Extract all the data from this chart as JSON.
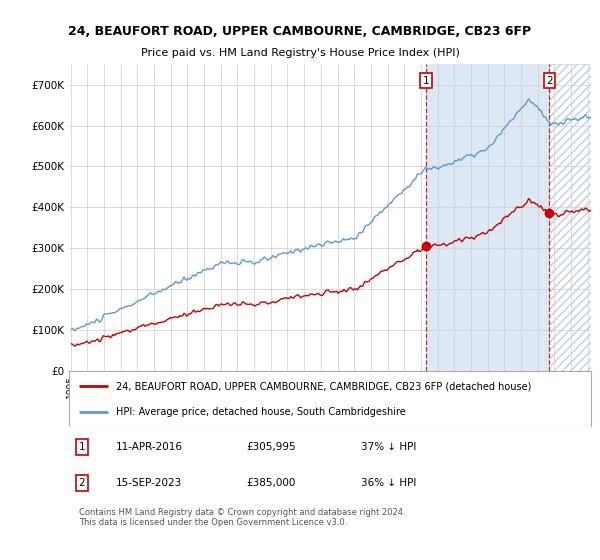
{
  "title": "24, BEAUFORT ROAD, UPPER CAMBOURNE, CAMBRIDGE, CB23 6FP",
  "subtitle": "Price paid vs. HM Land Registry's House Price Index (HPI)",
  "hpi_label": "HPI: Average price, detached house, South Cambridgeshire",
  "property_label": "24, BEAUFORT ROAD, UPPER CAMBOURNE, CAMBRIDGE, CB23 6FP (detached house)",
  "hpi_color": "#5b9bd5",
  "property_color": "#cc0000",
  "vline_color": "#cc0000",
  "shade_color": "#dce9f5",
  "hatch_color": "#c0d0e0",
  "annotation1": {
    "label": "1",
    "date": "11-APR-2016",
    "price": "£305,995",
    "note": "37% ↓ HPI"
  },
  "annotation2": {
    "label": "2",
    "date": "15-SEP-2023",
    "price": "£385,000",
    "note": "36% ↓ HPI"
  },
  "footnote": "Contains HM Land Registry data © Crown copyright and database right 2024.\nThis data is licensed under the Open Government Licence v3.0.",
  "sale1_price": 305995,
  "sale2_price": 385000,
  "ylim": [
    0,
    750000
  ],
  "yticks": [
    0,
    100000,
    200000,
    300000,
    400000,
    500000,
    600000,
    700000
  ],
  "ytick_labels": [
    "£0",
    "£100K",
    "£200K",
    "£300K",
    "£400K",
    "£500K",
    "£600K",
    "£700K"
  ],
  "background_color": "#ffffff",
  "grid_color": "#cccccc",
  "start_year": 1995,
  "end_year": 2026
}
